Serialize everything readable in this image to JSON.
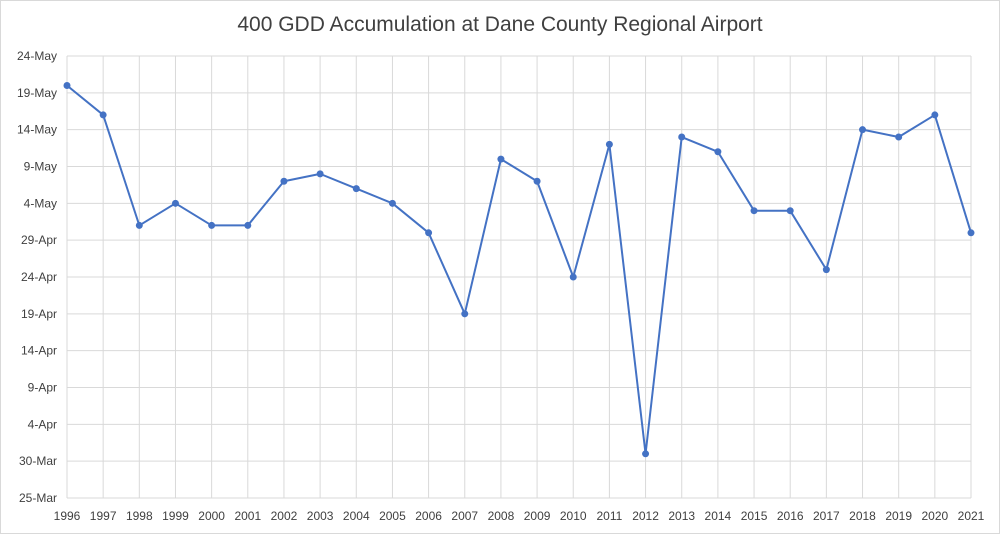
{
  "chart_data": {
    "type": "line",
    "title": "400 GDD Accumulation at Dane County Regional Airport",
    "xlabel": "",
    "ylabel": "",
    "categories": [
      "1996",
      "1997",
      "1998",
      "1999",
      "2000",
      "2001",
      "2002",
      "2003",
      "2004",
      "2005",
      "2006",
      "2007",
      "2008",
      "2009",
      "2010",
      "2011",
      "2012",
      "2013",
      "2014",
      "2015",
      "2016",
      "2017",
      "2018",
      "2019",
      "2020",
      "2021"
    ],
    "series": [
      {
        "values": [
          "20-May",
          "16-May",
          "1-May",
          "4-May",
          "1-May",
          "1-May",
          "7-May",
          "8-May",
          "6-May",
          "4-May",
          "30-Apr",
          "19-Apr",
          "10-May",
          "7-May",
          "24-Apr",
          "12-May",
          "31-Mar",
          "13-May",
          "11-May",
          "3-May",
          "3-May",
          "25-Apr",
          "14-May",
          "13-May",
          "16-May",
          "30-Apr"
        ]
      }
    ],
    "y_ticks": [
      "25-Mar",
      "30-Mar",
      "4-Apr",
      "9-Apr",
      "14-Apr",
      "19-Apr",
      "24-Apr",
      "29-Apr",
      "4-May",
      "9-May",
      "14-May",
      "19-May",
      "24-May"
    ],
    "ylim": [
      "25-Mar",
      "24-May"
    ],
    "grid": true,
    "line_color": "#4472c4",
    "grid_color": "#d9d9d9"
  }
}
